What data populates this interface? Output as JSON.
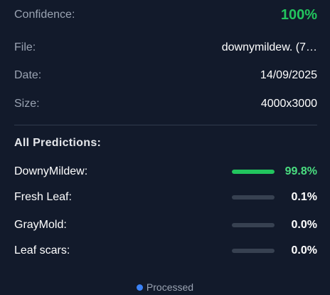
{
  "details": {
    "confidence_label": "Confidence:",
    "confidence_value": "100%",
    "file_label": "File:",
    "file_value": "downymildew. (7…",
    "date_label": "Date:",
    "date_value": "14/09/2025",
    "size_label": "Size:",
    "size_value": "4000x3000"
  },
  "predictions": {
    "title": "All Predictions:",
    "items": [
      {
        "label": "DownyMildew:",
        "percent": "99.8%",
        "fraction": 0.998,
        "bar_color": "#22c55e",
        "text_color": "#4ade80"
      },
      {
        "label": "Fresh Leaf:",
        "percent": "0.1%",
        "fraction": 0.001,
        "bar_color": "#22c55e",
        "text_color": "#ffffff"
      },
      {
        "label": "GrayMold:",
        "percent": "0.0%",
        "fraction": 0.0,
        "bar_color": "#22c55e",
        "text_color": "#ffffff"
      },
      {
        "label": "Leaf scars:",
        "percent": "0.0%",
        "fraction": 0.0,
        "bar_color": "#22c55e",
        "text_color": "#ffffff"
      }
    ]
  },
  "status": {
    "label": "Processed",
    "dot_color": "#3b82f6"
  },
  "colors": {
    "background": "#121a2b",
    "accent_green": "#22c55e",
    "muted_text": "#9aa3b2",
    "track": "#374151"
  }
}
